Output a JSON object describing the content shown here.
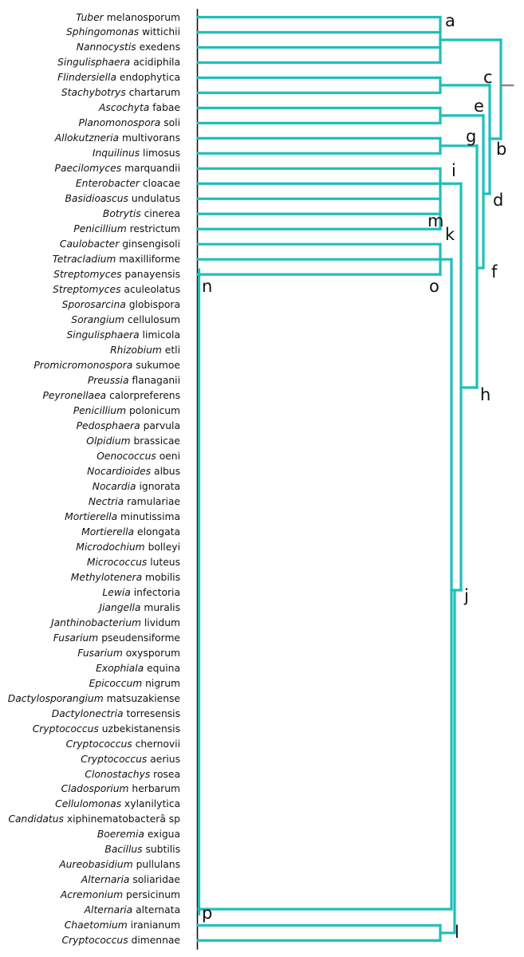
{
  "taxa": [
    {
      "genus": "Tuber",
      "species": "melanosporum"
    },
    {
      "genus": "Sphingomonas",
      "species": "wittichii"
    },
    {
      "genus": "Nannocystis",
      "species": "exedens"
    },
    {
      "genus": "Singulisphaera",
      "species": "acidiphila"
    },
    {
      "genus": "Flindersiella",
      "species": "endophytica"
    },
    {
      "genus": "Stachybotrys",
      "species": "chartarum"
    },
    {
      "genus": "Ascochyta",
      "species": "fabae"
    },
    {
      "genus": "Planomonospora",
      "species": "soli"
    },
    {
      "genus": "Allokutzneria",
      "species": "multivorans"
    },
    {
      "genus": "Inquilinus",
      "species": "limosus"
    },
    {
      "genus": "Paecilomyces",
      "species": "marquandii"
    },
    {
      "genus": "Enterobacter",
      "species": "cloacae"
    },
    {
      "genus": "Basidioascus",
      "species": "undulatus"
    },
    {
      "genus": "Botrytis",
      "species": "cinerea"
    },
    {
      "genus": "Penicillium",
      "species": "restrictum"
    },
    {
      "genus": "Caulobacter",
      "species": "ginsengisoli"
    },
    {
      "genus": "Tetracladium",
      "species": "maxilliforme"
    },
    {
      "genus": "Streptomyces",
      "species": "panayensis"
    },
    {
      "genus": "Streptomyces",
      "species": "aculeolatus"
    },
    {
      "genus": "Sporosarcina",
      "species": "globispora"
    },
    {
      "genus": "Sorangium",
      "species": "cellulosum"
    },
    {
      "genus": "Singulisphaera",
      "species": "limicola"
    },
    {
      "genus": "Rhizobium",
      "species": "etli"
    },
    {
      "genus": "Promicromonospora",
      "species": "sukumoe"
    },
    {
      "genus": "Preussia",
      "species": "flanaganii"
    },
    {
      "genus": "Peyronellaea",
      "species": "calorpreferens"
    },
    {
      "genus": "Penicillium",
      "species": "polonicum"
    },
    {
      "genus": "Pedosphaera",
      "species": "parvula"
    },
    {
      "genus": "Olpidium",
      "species": "brassicae"
    },
    {
      "genus": "Oenococcus",
      "species": "oeni"
    },
    {
      "genus": "Nocardioides",
      "species": "albus"
    },
    {
      "genus": "Nocardia",
      "species": "ignorata"
    },
    {
      "genus": "Nectria",
      "species": "ramulariae"
    },
    {
      "genus": "Mortierella",
      "species": "minutissima"
    },
    {
      "genus": "Mortierella",
      "species": "elongata"
    },
    {
      "genus": "Microdochium",
      "species": "bolleyi"
    },
    {
      "genus": "Micrococcus",
      "species": "luteus"
    },
    {
      "genus": "Methylotenera",
      "species": "mobilis"
    },
    {
      "genus": "Lewia",
      "species": "infectoria"
    },
    {
      "genus": "Jiangella",
      "species": "muralis"
    },
    {
      "genus": "Janthinobacterium",
      "species": "lividum"
    },
    {
      "genus": "Fusarium",
      "species": "pseudensiforme"
    },
    {
      "genus": "Fusarium",
      "species": "oxysporum"
    },
    {
      "genus": "Exophiala",
      "species": "equina"
    },
    {
      "genus": "Epicoccum",
      "species": "nigrum"
    },
    {
      "genus": "Dactylosporangium",
      "species": "matsuzakiense"
    },
    {
      "genus": "Dactylonectria",
      "species": "torresensis"
    },
    {
      "genus": "Cryptococcus",
      "species": "uzbekistanensis"
    },
    {
      "genus": "Cryptococcus",
      "species": "chernovii"
    },
    {
      "genus": "Cryptococcus",
      "species": "aerius"
    },
    {
      "genus": "Clonostachys",
      "species": "rosea"
    },
    {
      "genus": "Cladosporium",
      "species": "herbarum"
    },
    {
      "genus": "Cellulomonas",
      "species": "xylanilytica"
    },
    {
      "genus": "Candidatus",
      "species": "xiphinematobacterâ sp"
    },
    {
      "genus": "Boeremia",
      "species": "exigua"
    },
    {
      "genus": "Bacillus",
      "species": "subtilis"
    },
    {
      "genus": "Aureobasidium",
      "species": "pullulans"
    },
    {
      "genus": "Alternaria",
      "species": "soliaridae"
    },
    {
      "genus": "Acremonium",
      "species": "persicinum"
    },
    {
      "genus": "Alternaria",
      "species": "alternata"
    },
    {
      "genus": "Chaetomium",
      "species": "iranianum"
    },
    {
      "genus": "Cryptococcus",
      "species": "dimennae"
    }
  ],
  "node_labels": [
    "a",
    "b",
    "c",
    "d",
    "e",
    "f",
    "g",
    "h",
    "i",
    "j",
    "k",
    "l",
    "m",
    "n",
    "o",
    "p"
  ],
  "colors": {
    "branch": "#1fbfba",
    "root_stub": "#8a8a8a",
    "baseline": "#111111"
  }
}
